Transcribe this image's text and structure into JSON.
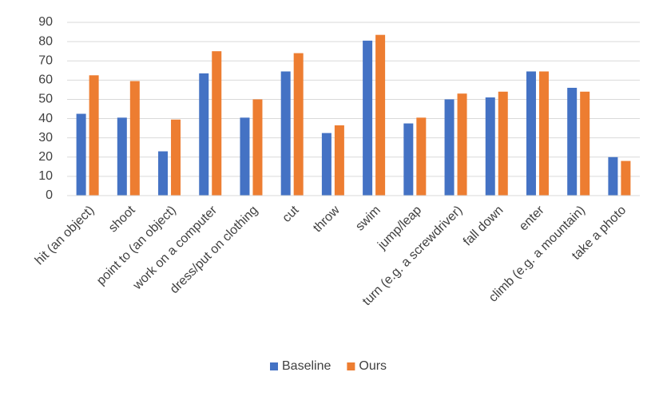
{
  "chart_data": {
    "type": "bar",
    "categories": [
      "hit (an object)",
      "shoot",
      "point to (an object)",
      "work on a computer",
      "dress/put on clothing",
      "cut",
      "throw",
      "swim",
      "jump/leap",
      "turn (e.g. a screwdriver)",
      "fall down",
      "enter",
      "climb (e.g. a mountain)",
      "take a photo"
    ],
    "series": [
      {
        "name": "Baseline",
        "color": "#4472c4",
        "values": [
          42.5,
          40.5,
          23,
          63.5,
          40.5,
          64.5,
          32.5,
          80.5,
          37.5,
          50,
          51,
          64.5,
          56,
          20
        ]
      },
      {
        "name": "Ours",
        "color": "#ed7d31",
        "values": [
          62.5,
          59.5,
          39.5,
          75,
          50,
          74,
          36.5,
          83.5,
          40.5,
          53,
          54,
          64.5,
          54,
          18
        ]
      }
    ],
    "ylim": [
      0,
      90
    ],
    "yticks": [
      0,
      10,
      20,
      30,
      40,
      50,
      60,
      70,
      80,
      90
    ],
    "grid": true,
    "legend": "bottom"
  }
}
